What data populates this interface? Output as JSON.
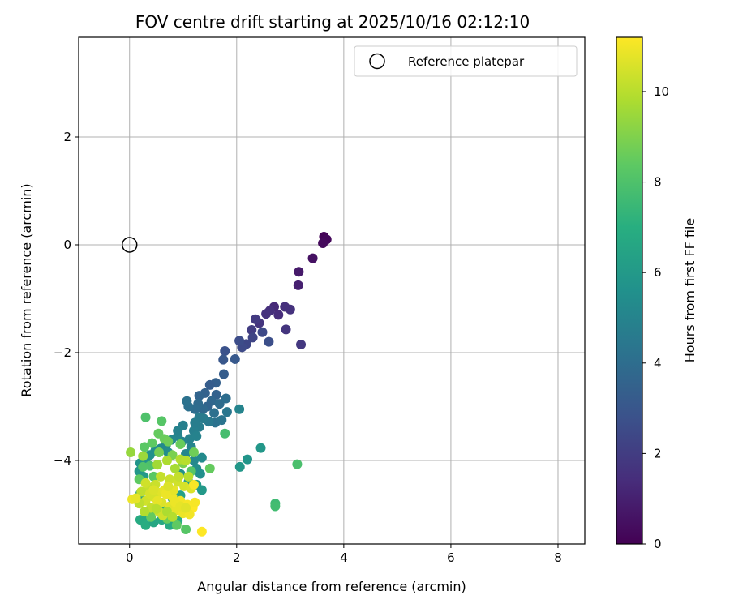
{
  "chart_data": {
    "type": "scatter",
    "title": "FOV centre drift starting at 2025/10/16 02:12:10",
    "xlabel": "Angular distance from reference (arcmin)",
    "ylabel": "Rotation from reference (arcmin)",
    "xlim": [
      -0.95,
      8.5
    ],
    "ylim": [
      -5.55,
      3.85
    ],
    "xticks": [
      0,
      2,
      4,
      6,
      8
    ],
    "xtick_labels": [
      "0",
      "2",
      "4",
      "6",
      "8"
    ],
    "yticks": [
      2,
      0,
      -2,
      -4
    ],
    "ytick_labels": [
      "2",
      "0",
      "−2",
      "−4"
    ],
    "grid": true,
    "legend": {
      "location": "upper right",
      "entries": [
        "Reference platepar"
      ]
    },
    "reference_point": {
      "x": 0,
      "y": 0
    },
    "colorbar": {
      "label": "Hours from first FF file",
      "range": [
        0,
        11.2
      ],
      "ticks": [
        0,
        2,
        4,
        6,
        8,
        10
      ],
      "tick_labels": [
        "0",
        "2",
        "4",
        "6",
        "8",
        "10"
      ],
      "colormap": "viridis"
    },
    "series": [
      {
        "name": "FOV centre drift",
        "points": [
          [
            3.63,
            0.15
          ],
          [
            3.68,
            0.1
          ],
          [
            3.61,
            0.03
          ],
          [
            3.42,
            -0.25
          ],
          [
            3.16,
            -0.5
          ],
          [
            3.15,
            -0.75
          ],
          [
            3.2,
            -1.85
          ],
          [
            2.92,
            -1.57
          ],
          [
            3.0,
            -1.2
          ],
          [
            2.9,
            -1.15
          ],
          [
            2.78,
            -1.3
          ],
          [
            2.7,
            -1.15
          ],
          [
            2.62,
            -1.22
          ],
          [
            2.55,
            -1.28
          ],
          [
            2.42,
            -1.45
          ],
          [
            2.35,
            -1.38
          ],
          [
            2.28,
            -1.58
          ],
          [
            2.3,
            -1.72
          ],
          [
            2.18,
            -1.84
          ],
          [
            2.1,
            -1.9
          ],
          [
            2.05,
            -1.78
          ],
          [
            1.78,
            -1.97
          ],
          [
            1.75,
            -2.13
          ],
          [
            1.97,
            -2.12
          ],
          [
            2.6,
            -1.8
          ],
          [
            2.48,
            -1.62
          ],
          [
            1.76,
            -2.4
          ],
          [
            1.61,
            -2.56
          ],
          [
            1.5,
            -2.6
          ],
          [
            1.41,
            -2.75
          ],
          [
            1.3,
            -2.8
          ],
          [
            1.62,
            -2.78
          ],
          [
            1.53,
            -2.9
          ],
          [
            1.45,
            -3.0
          ],
          [
            1.37,
            -3.05
          ],
          [
            1.28,
            -2.95
          ],
          [
            1.22,
            -3.05
          ],
          [
            1.1,
            -3.0
          ],
          [
            1.07,
            -2.9
          ],
          [
            1.68,
            -2.95
          ],
          [
            1.8,
            -2.85
          ],
          [
            1.58,
            -3.12
          ],
          [
            1.6,
            -3.3
          ],
          [
            1.72,
            -3.25
          ],
          [
            1.82,
            -3.1
          ],
          [
            2.05,
            -3.05
          ],
          [
            1.48,
            -3.28
          ],
          [
            1.38,
            -3.22
          ],
          [
            1.3,
            -3.38
          ],
          [
            1.2,
            -3.45
          ],
          [
            1.12,
            -3.6
          ],
          [
            0.98,
            -3.65
          ],
          [
            0.9,
            -3.55
          ],
          [
            0.78,
            -3.62
          ],
          [
            0.68,
            -3.72
          ],
          [
            0.72,
            -3.85
          ],
          [
            0.58,
            -3.78
          ],
          [
            0.48,
            -3.82
          ],
          [
            0.38,
            -3.9
          ],
          [
            0.3,
            -4.0
          ],
          [
            0.2,
            -4.05
          ],
          [
            0.18,
            -4.2
          ],
          [
            0.26,
            -4.3
          ],
          [
            1.25,
            -3.55
          ],
          [
            1.15,
            -3.75
          ],
          [
            1.05,
            -3.88
          ],
          [
            1.2,
            -4.0
          ],
          [
            1.35,
            -3.95
          ],
          [
            1.3,
            -3.2
          ],
          [
            1.22,
            -3.3
          ],
          [
            1.0,
            -3.35
          ],
          [
            0.9,
            -3.45
          ],
          [
            1.25,
            -4.15
          ],
          [
            1.32,
            -4.25
          ],
          [
            0.95,
            -4.25
          ],
          [
            2.45,
            -3.77
          ],
          [
            2.2,
            -3.98
          ],
          [
            2.06,
            -4.12
          ],
          [
            1.35,
            -4.55
          ],
          [
            1.25,
            -4.45
          ],
          [
            1.1,
            -4.4
          ],
          [
            0.95,
            -4.65
          ],
          [
            0.8,
            -4.7
          ],
          [
            0.6,
            -4.85
          ],
          [
            0.45,
            -4.9
          ],
          [
            0.32,
            -5.02
          ],
          [
            0.2,
            -5.1
          ],
          [
            0.3,
            -5.2
          ],
          [
            0.45,
            -5.15
          ],
          [
            0.6,
            -5.1
          ],
          [
            0.75,
            -5.2
          ],
          [
            0.9,
            -5.12
          ],
          [
            0.35,
            -4.55
          ],
          [
            0.2,
            -4.62
          ],
          [
            0.3,
            -3.2
          ],
          [
            0.6,
            -3.27
          ],
          [
            0.54,
            -3.5
          ],
          [
            0.65,
            -3.6
          ],
          [
            0.72,
            -3.65
          ],
          [
            0.42,
            -3.68
          ],
          [
            0.28,
            -3.75
          ],
          [
            0.55,
            -3.85
          ],
          [
            0.8,
            -3.9
          ],
          [
            0.95,
            -3.7
          ],
          [
            1.2,
            -3.85
          ],
          [
            1.0,
            -4.05
          ],
          [
            1.15,
            -4.2
          ],
          [
            1.5,
            -4.15
          ],
          [
            1.78,
            -3.5
          ],
          [
            0.38,
            -4.1
          ],
          [
            0.25,
            -4.12
          ],
          [
            0.45,
            -4.3
          ],
          [
            0.18,
            -4.35
          ],
          [
            2.72,
            -4.8
          ],
          [
            2.72,
            -4.85
          ],
          [
            3.13,
            -4.07
          ],
          [
            1.05,
            -5.28
          ],
          [
            0.88,
            -5.2
          ],
          [
            0.7,
            -5.08
          ],
          [
            0.4,
            -5.05
          ],
          [
            0.02,
            -3.85
          ],
          [
            0.25,
            -3.92
          ],
          [
            0.52,
            -4.08
          ],
          [
            0.7,
            -4.0
          ],
          [
            0.85,
            -4.15
          ],
          [
            0.95,
            -3.98
          ],
          [
            1.05,
            -4.0
          ],
          [
            0.58,
            -4.3
          ],
          [
            0.75,
            -4.35
          ],
          [
            0.9,
            -4.4
          ],
          [
            1.02,
            -4.48
          ],
          [
            1.15,
            -4.52
          ],
          [
            0.48,
            -4.45
          ],
          [
            0.35,
            -4.5
          ],
          [
            0.22,
            -4.58
          ],
          [
            0.55,
            -4.6
          ],
          [
            0.65,
            -4.55
          ],
          [
            0.8,
            -4.68
          ],
          [
            0.95,
            -4.75
          ],
          [
            1.08,
            -4.82
          ],
          [
            1.18,
            -4.88
          ],
          [
            0.45,
            -4.68
          ],
          [
            0.3,
            -4.75
          ],
          [
            0.6,
            -4.78
          ],
          [
            0.75,
            -4.85
          ],
          [
            0.88,
            -4.92
          ],
          [
            1.0,
            -4.98
          ],
          [
            0.55,
            -4.95
          ],
          [
            0.4,
            -4.88
          ],
          [
            0.62,
            -5.02
          ],
          [
            0.18,
            -4.8
          ],
          [
            1.12,
            -5.0
          ],
          [
            1.22,
            -4.78
          ],
          [
            0.82,
            -4.55
          ],
          [
            0.68,
            -4.62
          ],
          [
            0.52,
            -4.75
          ],
          [
            0.38,
            -4.62
          ],
          [
            0.45,
            -4.55
          ],
          [
            0.3,
            -4.42
          ],
          [
            0.05,
            -4.72
          ],
          [
            0.12,
            -4.7
          ],
          [
            1.2,
            -4.45
          ],
          [
            0.92,
            -4.3
          ],
          [
            1.1,
            -4.3
          ],
          [
            0.72,
            -4.48
          ],
          [
            0.85,
            -4.78
          ],
          [
            0.95,
            -4.85
          ],
          [
            1.05,
            -4.88
          ],
          [
            0.5,
            -4.9
          ],
          [
            0.28,
            -4.95
          ],
          [
            0.7,
            -4.95
          ],
          [
            0.8,
            -5.05
          ],
          [
            1.35,
            -5.32
          ]
        ],
        "hours": [
          0.1,
          0.2,
          0.3,
          0.5,
          0.8,
          1.0,
          1.8,
          1.7,
          1.6,
          1.5,
          1.4,
          1.3,
          1.5,
          1.6,
          1.7,
          1.9,
          2.0,
          2.3,
          2.4,
          2.5,
          2.6,
          2.8,
          3.0,
          3.1,
          2.7,
          2.5,
          3.3,
          3.4,
          3.3,
          3.5,
          3.6,
          3.5,
          3.7,
          3.6,
          3.8,
          3.9,
          4.0,
          4.1,
          4.2,
          3.9,
          4.0,
          4.1,
          4.2,
          4.3,
          4.4,
          5.0,
          4.5,
          4.6,
          4.7,
          4.8,
          4.9,
          5.0,
          5.1,
          5.2,
          5.3,
          5.4,
          5.3,
          5.5,
          5.6,
          5.7,
          5.8,
          5.9,
          6.0,
          4.9,
          5.0,
          5.1,
          5.2,
          5.3,
          4.6,
          4.7,
          4.8,
          4.9,
          5.4,
          5.5,
          5.6,
          5.9,
          5.8,
          5.9,
          6.0,
          6.1,
          6.2,
          6.3,
          6.4,
          6.5,
          6.6,
          6.7,
          6.8,
          6.9,
          6.6,
          6.7,
          6.8,
          6.9,
          6.2,
          6.3,
          8.0,
          8.2,
          8.5,
          8.6,
          8.7,
          8.4,
          8.3,
          8.8,
          8.9,
          8.6,
          8.7,
          8.9,
          8.2,
          8.5,
          7.8,
          8.0,
          8.1,
          8.3,
          8.4,
          7.6,
          7.7,
          7.9,
          8.2,
          8.4,
          8.6,
          8.5,
          9.4,
          9.5,
          9.6,
          9.8,
          9.7,
          9.9,
          10.0,
          10.2,
          10.3,
          10.4,
          10.5,
          10.6,
          10.3,
          10.2,
          10.1,
          10.7,
          10.8,
          10.9,
          11.0,
          11.1,
          11.2,
          10.5,
          10.4,
          10.6,
          10.7,
          10.8,
          10.9,
          10.3,
          10.2,
          10.4,
          10.1,
          11.0,
          11.1,
          10.8,
          10.9,
          10.8,
          10.5,
          10.6,
          10.4,
          10.9,
          10.8,
          11.1,
          10.2,
          10.0,
          10.6,
          10.9,
          10.8,
          10.7,
          10.0,
          9.9,
          9.8,
          9.9,
          11.2
        ]
      }
    ]
  }
}
